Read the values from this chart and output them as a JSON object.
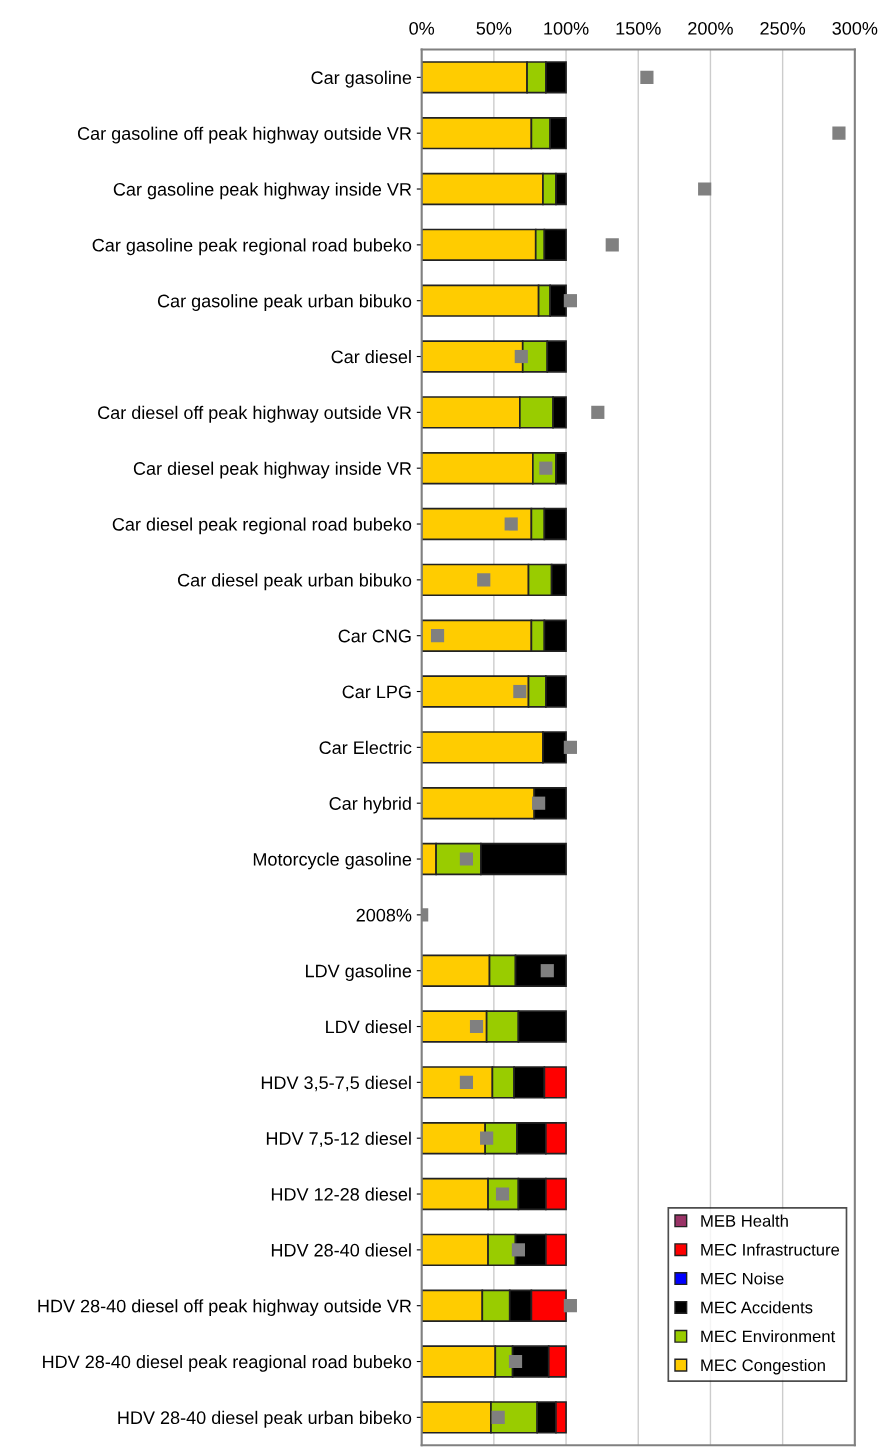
{
  "chart_data": {
    "type": "bar",
    "orientation": "horizontal",
    "stacked": true,
    "categories": [
      "Car gasoline",
      "Car gasoline off peak highway outside VR",
      "Car gasoline peak highway inside VR",
      "Car gasoline peak regional road bubeko",
      "Car gasoline peak urban bibuko",
      "Car diesel",
      "Car diesel off peak highway outside VR",
      "Car diesel peak highway inside VR",
      "Car diesel peak regional road bubeko",
      "Car diesel peak urban bibuko",
      "Car CNG",
      "Car LPG",
      "Car Electric",
      "Car hybrid",
      "Motorcycle gasoline",
      "2008%",
      "LDV gasoline",
      "LDV diesel",
      "HDV 3,5-7,5 diesel",
      "HDV 7,5-12 diesel",
      "HDV 12-28 diesel",
      "HDV 28-40 diesel",
      "HDV 28-40 diesel off peak highway outside VR",
      "HDV 28-40 diesel peak reagional road bubeko",
      "HDV 28-40 diesel peak urban bibeko"
    ],
    "series": [
      {
        "name": "MEC Congestion",
        "color": "#ffcc00",
        "values": [
          73,
          76,
          84,
          79,
          81,
          70,
          68,
          77,
          76,
          74,
          76,
          74,
          84,
          78,
          10,
          null,
          47,
          45,
          49,
          44,
          46,
          46,
          42,
          51,
          48
        ]
      },
      {
        "name": "MEC Environment",
        "color": "#99cc00",
        "values": [
          13,
          13,
          9,
          6,
          8,
          17,
          23,
          16,
          9,
          16,
          9,
          12,
          0,
          0,
          31,
          null,
          18,
          22,
          15,
          22,
          21,
          19,
          19,
          12,
          32
        ]
      },
      {
        "name": "MEC Accidents",
        "color": "#000000",
        "values": [
          14,
          11,
          7,
          15,
          11,
          13,
          9,
          7,
          15,
          10,
          15,
          14,
          16,
          22,
          59,
          null,
          35,
          33,
          21,
          20,
          19,
          21,
          15,
          25,
          13
        ]
      },
      {
        "name": "MEC Noise",
        "color": "#0000ff",
        "values": [
          0,
          0,
          0,
          0,
          0,
          0,
          0,
          0,
          0,
          0,
          0,
          0,
          0,
          0,
          0,
          null,
          0,
          0,
          0,
          0,
          0,
          0,
          0,
          0,
          0
        ]
      },
      {
        "name": "MEC Infrastructure",
        "color": "#ff0000",
        "values": [
          0,
          0,
          0,
          0,
          0,
          0,
          0,
          0,
          0,
          0,
          0,
          0,
          0,
          0,
          0,
          null,
          0,
          0,
          15,
          14,
          14,
          14,
          24,
          12,
          7
        ]
      },
      {
        "name": "MEB Health",
        "color": "#993366",
        "values": [
          0,
          0,
          0,
          0,
          0,
          0,
          0,
          0,
          0,
          0,
          0,
          0,
          0,
          0,
          0,
          null,
          0,
          0,
          0,
          0,
          0,
          0,
          0,
          0,
          0
        ]
      },
      {
        "type": "scatter",
        "color": "#808080",
        "marker": "square",
        "values": [
          156,
          289,
          196,
          132,
          103,
          69,
          122,
          86,
          62,
          43,
          11,
          68,
          103,
          81,
          31,
          0,
          87,
          38,
          31,
          45,
          56,
          67,
          103,
          65,
          53
        ]
      }
    ],
    "xlim": [
      0,
      300
    ],
    "xticks": [
      {
        "value": 0,
        "label": "0%"
      },
      {
        "value": 50,
        "label": "50%"
      },
      {
        "value": 100,
        "label": "100%"
      },
      {
        "value": 150,
        "label": "150%"
      },
      {
        "value": 200,
        "label": "200%"
      },
      {
        "value": 250,
        "label": "250%"
      },
      {
        "value": 300,
        "label": "300%"
      }
    ],
    "grid": "x",
    "legend": "bottom right"
  }
}
